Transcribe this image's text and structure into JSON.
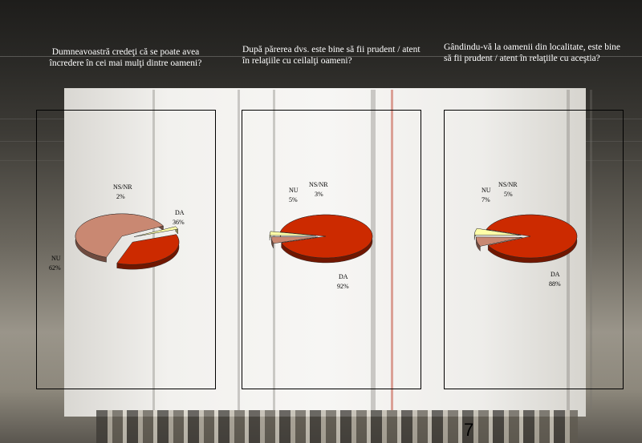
{
  "slide": {
    "page_number": "7"
  },
  "chart_data": [
    {
      "type": "pie",
      "title": "Dumneavoastră credeţi că se poate avea încredere în cei mai mulţi dintre oameni?",
      "categories": [
        "DA",
        "NU",
        "NS/NR"
      ],
      "values": [
        36,
        62,
        2
      ],
      "value_labels": [
        "36%",
        "62%",
        "2%"
      ],
      "colors": [
        "#cc2a00",
        "#c98872",
        "#ffffa8"
      ],
      "exploded": true
    },
    {
      "type": "pie",
      "title": "După părerea dvs. este bine să fii prudent / atent în relaţiile cu ceilalţi oameni?",
      "categories": [
        "DA",
        "NU",
        "NS/NR"
      ],
      "values": [
        92,
        5,
        3
      ],
      "value_labels": [
        "92%",
        "5%",
        "3%"
      ],
      "colors": [
        "#cc2a00",
        "#c98872",
        "#ffffa8"
      ],
      "exploded": true
    },
    {
      "type": "pie",
      "title": "Gândindu-vă la oamenii din localitate, este bine să fii prudent / atent în relaţiile cu aceştia?",
      "categories": [
        "DA",
        "NU",
        "NS/NR"
      ],
      "values": [
        88,
        7,
        5
      ],
      "value_labels": [
        "88%",
        "7%",
        "5%"
      ],
      "colors": [
        "#cc2a00",
        "#c98872",
        "#ffffa8"
      ],
      "exploded": true
    }
  ]
}
